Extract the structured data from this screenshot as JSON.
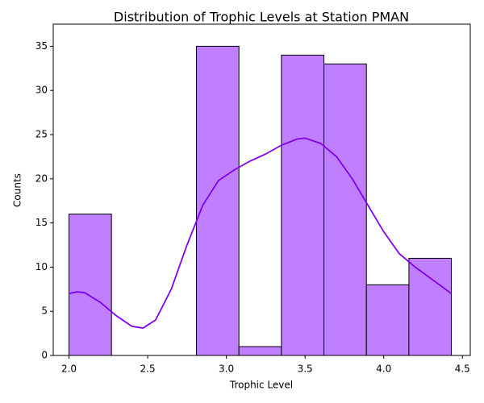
{
  "chart_data": {
    "type": "histogram",
    "title": "Distribution of Trophic Levels at Station PMAN",
    "x_label": "Trophic Level",
    "y_label": "Counts",
    "bins": [
      2.0,
      2.27,
      2.54,
      2.81,
      3.08,
      3.35,
      3.62,
      3.89,
      4.16,
      4.43
    ],
    "values": [
      16,
      0,
      0,
      35,
      1,
      34,
      33,
      8,
      11
    ],
    "color": "#bf7fff",
    "kde": {
      "color": "#8000ee",
      "x": [
        2.0,
        2.05,
        2.1,
        2.2,
        2.3,
        2.4,
        2.47,
        2.55,
        2.65,
        2.75,
        2.85,
        2.95,
        3.05,
        3.15,
        3.25,
        3.35,
        3.45,
        3.5,
        3.6,
        3.7,
        3.8,
        3.9,
        4.0,
        4.1,
        4.2,
        4.3,
        4.43
      ],
      "values": [
        7,
        7.2,
        7.1,
        6,
        4.5,
        3.3,
        3.1,
        4,
        7.5,
        12.5,
        17,
        19.8,
        21,
        22,
        22.8,
        23.8,
        24.5,
        24.6,
        24,
        22.5,
        20,
        17,
        14,
        11.5,
        10,
        8.7,
        7
      ]
    },
    "xlim": [
      1.9,
      4.55
    ],
    "ylim": [
      0,
      37.5
    ],
    "xticks": [
      {
        "value": 2.0,
        "label": "2.0"
      },
      2.5,
      {
        "value": 3.0,
        "label": "3.0"
      },
      3.5,
      {
        "value": 4.0,
        "label": "4.0"
      },
      4.5
    ],
    "yticks": [
      0,
      5,
      10,
      15,
      20,
      25,
      30,
      35
    ]
  }
}
